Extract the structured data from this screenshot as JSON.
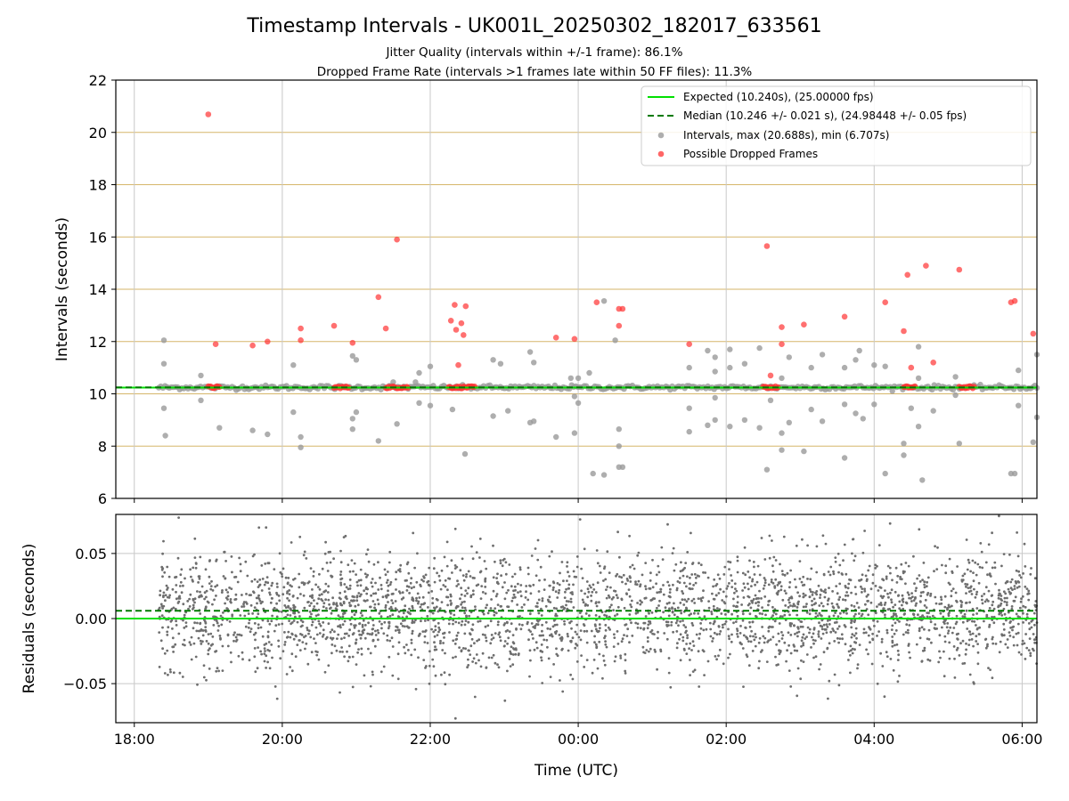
{
  "figure": {
    "title": "Timestamp Intervals - UK001L_20250302_182017_633561",
    "subtitle1": "Jitter Quality (intervals within +/-1 frame): 86.1%",
    "subtitle2": "Dropped Frame Rate (intervals >1 frames late within 50 FF files): 11.3%"
  },
  "colors": {
    "expected": "#00e000",
    "median": "#007a00",
    "intervals": "#9a9a9a",
    "dropped": "#ff3333",
    "residual": "#6e6e6e",
    "hgrid_top": "#d6b66a",
    "grid": "#c8c8c8"
  },
  "chart_data": [
    {
      "type": "scatter",
      "ylabel": "Intervals (seconds)",
      "ylim": [
        6,
        22
      ],
      "xlim_hours": [
        17.75,
        30.2
      ],
      "y_ticks": [
        "6",
        "8",
        "10",
        "12",
        "14",
        "16",
        "18",
        "20",
        "22"
      ],
      "y_tick_values": [
        6,
        8,
        10,
        12,
        14,
        16,
        18,
        20,
        22
      ],
      "grid": "horizontal lines at y ticks, vertical lines at x ticks",
      "legend": {
        "placement": "top-right",
        "entries": [
          "Expected (10.240s), (25.00000 fps)",
          "Median (10.246 +/- 0.021 s), (24.98448 +/- 0.05 fps)",
          "Intervals, max (20.688s), min (6.707s)",
          "Possible Dropped Frames"
        ]
      },
      "expected": 10.24,
      "median": 10.246,
      "series_range_hours": [
        18.33,
        30.2
      ],
      "dropped_points": [
        {
          "x": 19.0,
          "y": 20.688
        },
        {
          "x": 19.1,
          "y": 11.9
        },
        {
          "x": 19.6,
          "y": 11.85
        },
        {
          "x": 19.8,
          "y": 12.0
        },
        {
          "x": 20.25,
          "y": 12.5
        },
        {
          "x": 20.25,
          "y": 12.05
        },
        {
          "x": 20.7,
          "y": 12.6
        },
        {
          "x": 20.95,
          "y": 11.95
        },
        {
          "x": 21.3,
          "y": 13.7
        },
        {
          "x": 21.4,
          "y": 12.5
        },
        {
          "x": 21.55,
          "y": 15.9
        },
        {
          "x": 22.28,
          "y": 12.8
        },
        {
          "x": 22.33,
          "y": 13.4
        },
        {
          "x": 22.35,
          "y": 12.45
        },
        {
          "x": 22.38,
          "y": 11.1
        },
        {
          "x": 22.42,
          "y": 12.7
        },
        {
          "x": 22.45,
          "y": 12.25
        },
        {
          "x": 22.48,
          "y": 13.35
        },
        {
          "x": 23.7,
          "y": 12.15
        },
        {
          "x": 23.95,
          "y": 12.1
        },
        {
          "x": 24.25,
          "y": 13.5
        },
        {
          "x": 24.55,
          "y": 13.25
        },
        {
          "x": 24.6,
          "y": 13.25
        },
        {
          "x": 24.55,
          "y": 12.6
        },
        {
          "x": 25.5,
          "y": 11.9
        },
        {
          "x": 26.55,
          "y": 15.65
        },
        {
          "x": 26.6,
          "y": 10.7
        },
        {
          "x": 26.75,
          "y": 12.55
        },
        {
          "x": 26.75,
          "y": 11.9
        },
        {
          "x": 27.05,
          "y": 12.65
        },
        {
          "x": 27.6,
          "y": 12.95
        },
        {
          "x": 28.15,
          "y": 13.5
        },
        {
          "x": 28.4,
          "y": 12.4
        },
        {
          "x": 28.45,
          "y": 14.55
        },
        {
          "x": 28.5,
          "y": 11.0
        },
        {
          "x": 28.7,
          "y": 14.9
        },
        {
          "x": 28.8,
          "y": 11.2
        },
        {
          "x": 29.15,
          "y": 14.75
        },
        {
          "x": 29.85,
          "y": 13.5
        },
        {
          "x": 29.9,
          "y": 13.55
        },
        {
          "x": 30.15,
          "y": 12.3
        }
      ],
      "dropped_clusters": [
        {
          "x0": 19.0,
          "x1": 19.15,
          "y": 10.25
        },
        {
          "x0": 20.7,
          "x1": 20.9,
          "y": 10.25
        },
        {
          "x0": 21.4,
          "x1": 21.7,
          "y": 10.25
        },
        {
          "x0": 22.25,
          "x1": 22.6,
          "y": 10.25
        },
        {
          "x0": 26.5,
          "x1": 26.7,
          "y": 10.25
        },
        {
          "x0": 28.4,
          "x1": 28.55,
          "y": 10.25
        },
        {
          "x0": 29.15,
          "x1": 29.35,
          "y": 10.25
        }
      ],
      "outlier_points": [
        {
          "x": 18.4,
          "y": 12.05
        },
        {
          "x": 18.4,
          "y": 11.15
        },
        {
          "x": 18.4,
          "y": 9.45
        },
        {
          "x": 18.42,
          "y": 8.4
        },
        {
          "x": 18.9,
          "y": 10.7
        },
        {
          "x": 18.9,
          "y": 9.75
        },
        {
          "x": 19.15,
          "y": 8.7
        },
        {
          "x": 19.6,
          "y": 8.6
        },
        {
          "x": 19.8,
          "y": 8.45
        },
        {
          "x": 20.15,
          "y": 11.1
        },
        {
          "x": 20.15,
          "y": 9.3
        },
        {
          "x": 20.25,
          "y": 8.35
        },
        {
          "x": 20.25,
          "y": 7.95
        },
        {
          "x": 20.95,
          "y": 11.45
        },
        {
          "x": 21.0,
          "y": 11.3
        },
        {
          "x": 20.95,
          "y": 9.05
        },
        {
          "x": 21.0,
          "y": 9.3
        },
        {
          "x": 20.95,
          "y": 8.65
        },
        {
          "x": 21.3,
          "y": 8.2
        },
        {
          "x": 21.5,
          "y": 10.45
        },
        {
          "x": 21.55,
          "y": 8.85
        },
        {
          "x": 21.8,
          "y": 10.45
        },
        {
          "x": 21.85,
          "y": 10.8
        },
        {
          "x": 21.85,
          "y": 9.65
        },
        {
          "x": 22.0,
          "y": 11.05
        },
        {
          "x": 22.0,
          "y": 9.55
        },
        {
          "x": 22.3,
          "y": 9.4
        },
        {
          "x": 22.47,
          "y": 7.7
        },
        {
          "x": 22.85,
          "y": 11.3
        },
        {
          "x": 22.95,
          "y": 11.15
        },
        {
          "x": 22.85,
          "y": 9.15
        },
        {
          "x": 23.05,
          "y": 9.35
        },
        {
          "x": 23.35,
          "y": 11.6
        },
        {
          "x": 23.4,
          "y": 11.2
        },
        {
          "x": 23.35,
          "y": 8.9
        },
        {
          "x": 23.4,
          "y": 8.95
        },
        {
          "x": 23.7,
          "y": 8.35
        },
        {
          "x": 23.9,
          "y": 10.6
        },
        {
          "x": 23.95,
          "y": 9.9
        },
        {
          "x": 23.95,
          "y": 8.5
        },
        {
          "x": 24.0,
          "y": 10.6
        },
        {
          "x": 24.15,
          "y": 10.8
        },
        {
          "x": 24.0,
          "y": 9.65
        },
        {
          "x": 24.2,
          "y": 6.95
        },
        {
          "x": 24.35,
          "y": 13.55
        },
        {
          "x": 24.35,
          "y": 6.9
        },
        {
          "x": 24.5,
          "y": 12.05
        },
        {
          "x": 24.55,
          "y": 8.65
        },
        {
          "x": 24.55,
          "y": 8.0
        },
        {
          "x": 24.55,
          "y": 7.2
        },
        {
          "x": 24.6,
          "y": 7.2
        },
        {
          "x": 25.5,
          "y": 11.0
        },
        {
          "x": 25.5,
          "y": 9.45
        },
        {
          "x": 25.5,
          "y": 8.55
        },
        {
          "x": 25.75,
          "y": 11.65
        },
        {
          "x": 25.75,
          "y": 8.8
        },
        {
          "x": 25.85,
          "y": 11.4
        },
        {
          "x": 25.85,
          "y": 10.85
        },
        {
          "x": 25.85,
          "y": 9.85
        },
        {
          "x": 25.85,
          "y": 9.0
        },
        {
          "x": 26.05,
          "y": 11.7
        },
        {
          "x": 26.05,
          "y": 11.0
        },
        {
          "x": 26.05,
          "y": 8.75
        },
        {
          "x": 26.25,
          "y": 11.15
        },
        {
          "x": 26.25,
          "y": 9.0
        },
        {
          "x": 26.45,
          "y": 11.75
        },
        {
          "x": 26.45,
          "y": 8.7
        },
        {
          "x": 26.55,
          "y": 7.1
        },
        {
          "x": 26.6,
          "y": 9.75
        },
        {
          "x": 26.75,
          "y": 10.6
        },
        {
          "x": 26.75,
          "y": 8.5
        },
        {
          "x": 26.75,
          "y": 7.85
        },
        {
          "x": 26.85,
          "y": 11.4
        },
        {
          "x": 26.85,
          "y": 8.9
        },
        {
          "x": 27.05,
          "y": 7.8
        },
        {
          "x": 27.15,
          "y": 11.0
        },
        {
          "x": 27.15,
          "y": 9.4
        },
        {
          "x": 27.3,
          "y": 11.5
        },
        {
          "x": 27.3,
          "y": 8.95
        },
        {
          "x": 27.6,
          "y": 11.0
        },
        {
          "x": 27.6,
          "y": 9.6
        },
        {
          "x": 27.6,
          "y": 7.55
        },
        {
          "x": 27.75,
          "y": 11.3
        },
        {
          "x": 27.75,
          "y": 9.25
        },
        {
          "x": 27.8,
          "y": 11.65
        },
        {
          "x": 27.85,
          "y": 9.05
        },
        {
          "x": 28.0,
          "y": 11.1
        },
        {
          "x": 28.0,
          "y": 9.6
        },
        {
          "x": 28.15,
          "y": 11.05
        },
        {
          "x": 28.15,
          "y": 6.95
        },
        {
          "x": 28.4,
          "y": 8.1
        },
        {
          "x": 28.4,
          "y": 7.65
        },
        {
          "x": 28.5,
          "y": 9.45
        },
        {
          "x": 28.6,
          "y": 11.8
        },
        {
          "x": 28.6,
          "y": 10.6
        },
        {
          "x": 28.6,
          "y": 8.75
        },
        {
          "x": 28.65,
          "y": 6.7
        },
        {
          "x": 28.8,
          "y": 9.35
        },
        {
          "x": 29.1,
          "y": 10.65
        },
        {
          "x": 29.1,
          "y": 9.95
        },
        {
          "x": 29.15,
          "y": 8.1
        },
        {
          "x": 29.85,
          "y": 6.95
        },
        {
          "x": 29.9,
          "y": 6.95
        },
        {
          "x": 29.95,
          "y": 10.9
        },
        {
          "x": 29.95,
          "y": 9.55
        },
        {
          "x": 30.15,
          "y": 8.15
        },
        {
          "x": 30.2,
          "y": 11.5
        },
        {
          "x": 30.2,
          "y": 9.1
        }
      ]
    },
    {
      "type": "scatter",
      "xlabel": "Time (UTC)",
      "ylabel": "Residuals (seconds)",
      "ylim": [
        -0.08,
        0.08
      ],
      "xlim_hours": [
        17.75,
        30.2
      ],
      "y_ticks": [
        "0.05",
        "0.00",
        "−0.05"
      ],
      "y_tick_values": [
        0.05,
        0.0,
        -0.05
      ],
      "x_ticks": [
        "18:00",
        "20:00",
        "22:00",
        "00:00",
        "02:00",
        "04:00",
        "06:00"
      ],
      "x_tick_values": [
        18,
        20,
        22,
        24,
        26,
        28,
        30
      ],
      "expected_line": 0.0,
      "median_line": 0.006,
      "residual_count_approx": 3200,
      "residual_spread_sd": 0.022,
      "grid": "horizontal and vertical at ticks"
    }
  ]
}
